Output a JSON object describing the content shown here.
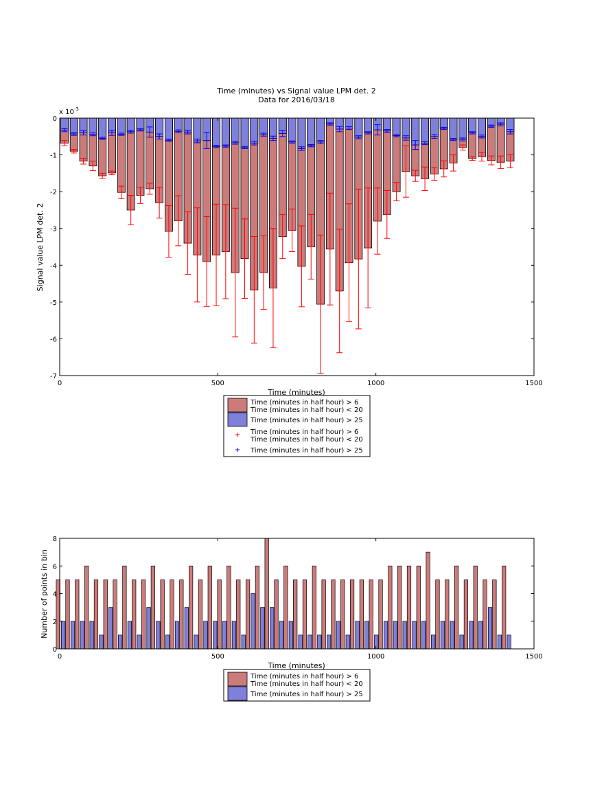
{
  "colors": {
    "red_bar": "#CC7B7B",
    "blue_bar": "#7F7FDC",
    "red_marker": "#FF0000",
    "blue_marker": "#0000FF"
  },
  "chart_data": [
    {
      "type": "bar",
      "title": "Time (minutes) vs Signal value LPM det. 2",
      "subtitle": "Data for 2016/03/18",
      "xlabel": "Time (minutes)",
      "ylabel": "Signal value LPM det. 2",
      "scale_label": "x 10",
      "scale_exponent": "-3",
      "xlim": [
        0,
        1500
      ],
      "ylim": [
        -7,
        0
      ],
      "xticks": [
        0,
        500,
        1000,
        1500
      ],
      "yticks": [
        -7,
        -6,
        -5,
        -4,
        -3,
        -2,
        -1,
        0
      ],
      "legend_position": "below",
      "legend": [
        {
          "kind": "bar",
          "color": "red",
          "line1": "Time (minutes in half hour) > 6",
          "line2": "Time (minutes in half hour) < 20"
        },
        {
          "kind": "bar",
          "color": "blue",
          "line1": "Time (minutes in half hour) > 25",
          "line2": ""
        },
        {
          "kind": "marker",
          "color": "red",
          "line1": "Time (minutes in half hour) > 6",
          "line2": "Time (minutes in half hour) < 20"
        },
        {
          "kind": "marker",
          "color": "blue",
          "line1": "Time (minutes in half hour) > 25",
          "line2": ""
        }
      ],
      "x": [
        15,
        45,
        75,
        105,
        135,
        165,
        195,
        225,
        255,
        285,
        315,
        345,
        375,
        405,
        435,
        465,
        495,
        525,
        555,
        585,
        615,
        645,
        675,
        705,
        735,
        765,
        795,
        825,
        855,
        885,
        915,
        945,
        975,
        1005,
        1035,
        1065,
        1095,
        1125,
        1155,
        1185,
        1215,
        1245,
        1275,
        1305,
        1335,
        1365,
        1395,
        1425
      ],
      "red_mean": [
        -0.68,
        -0.9,
        -1.17,
        -1.3,
        -1.57,
        -1.49,
        -2.02,
        -2.5,
        -2.1,
        -1.92,
        -2.3,
        -3.08,
        -2.79,
        -3.4,
        -3.72,
        -3.9,
        -3.72,
        -3.63,
        -4.2,
        -3.82,
        -4.67,
        -4.2,
        -4.62,
        -3.22,
        -3.05,
        -4.03,
        -3.5,
        -5.06,
        -3.56,
        -4.7,
        -3.93,
        -3.83,
        -3.53,
        -2.8,
        -2.62,
        -2.0,
        -1.45,
        -1.57,
        -1.65,
        -1.52,
        -1.38,
        -1.22,
        -0.8,
        -1.1,
        -1.05,
        -1.15,
        -1.2,
        -1.17
      ],
      "red_err": [
        0.07,
        0.05,
        0.08,
        0.13,
        0.07,
        0.05,
        0.17,
        0.4,
        0.22,
        0.15,
        0.42,
        0.7,
        0.68,
        0.85,
        1.28,
        1.22,
        1.38,
        1.28,
        1.75,
        1.08,
        1.45,
        1.0,
        1.62,
        0.6,
        0.58,
        1.1,
        0.88,
        1.88,
        1.52,
        1.68,
        1.6,
        1.9,
        1.63,
        0.9,
        0.65,
        0.25,
        0.7,
        0.15,
        0.32,
        0.17,
        0.22,
        0.22,
        0.07,
        0.05,
        0.12,
        0.12,
        0.17,
        0.18
      ],
      "blue_mean": [
        -0.33,
        -0.43,
        -0.4,
        -0.44,
        -0.55,
        -0.4,
        -0.44,
        -0.37,
        -0.32,
        -0.38,
        -0.5,
        -0.6,
        -0.36,
        -0.38,
        -0.62,
        -0.61,
        -0.77,
        -0.76,
        -0.67,
        -0.8,
        -0.68,
        -0.45,
        -0.55,
        -0.42,
        -0.65,
        -0.83,
        -0.75,
        -0.65,
        -0.16,
        -0.3,
        -0.27,
        -0.52,
        -0.4,
        -0.32,
        -0.35,
        -0.48,
        -0.54,
        -0.73,
        -0.68,
        -0.5,
        -0.28,
        -0.58,
        -0.58,
        -0.4,
        -0.5,
        -0.22,
        -0.17,
        -0.37
      ],
      "blue_err": [
        0.04,
        0.04,
        0.06,
        0.04,
        0.03,
        0.07,
        0.03,
        0.04,
        0.03,
        0.14,
        0.07,
        0.03,
        0.04,
        0.05,
        0.05,
        0.22,
        0.03,
        0.03,
        0.04,
        0.03,
        0.05,
        0.04,
        0.06,
        0.08,
        0.03,
        0.05,
        0.03,
        0.04,
        0.03,
        0.07,
        0.04,
        0.04,
        0.03,
        0.14,
        0.04,
        0.03,
        0.06,
        0.12,
        0.04,
        0.05,
        0.03,
        0.03,
        0.04,
        0.03,
        0.04,
        0.03,
        0.04,
        0.06
      ]
    },
    {
      "type": "bar",
      "xlabel": "Time (minutes)",
      "ylabel": "Number of points in bin",
      "xlim": [
        0,
        1500
      ],
      "ylim": [
        0,
        8
      ],
      "xticks": [
        0,
        500,
        1000,
        1500
      ],
      "yticks": [
        0,
        2,
        4,
        6,
        8
      ],
      "legend_position": "below",
      "legend": [
        {
          "kind": "bar",
          "color": "red",
          "line1": "Time (minutes in half hour) > 6",
          "line2": "Time (minutes in half hour) < 20"
        },
        {
          "kind": "bar",
          "color": "blue",
          "line1": "Time (minutes in half hour) > 25",
          "line2": ""
        }
      ],
      "x": [
        15,
        45,
        75,
        105,
        135,
        165,
        195,
        225,
        255,
        285,
        315,
        345,
        375,
        405,
        435,
        465,
        495,
        525,
        555,
        585,
        615,
        645,
        675,
        705,
        735,
        765,
        795,
        825,
        855,
        885,
        915,
        945,
        975,
        1005,
        1035,
        1065,
        1095,
        1125,
        1155,
        1185,
        1215,
        1245,
        1275,
        1305,
        1335,
        1365,
        1395,
        1425
      ],
      "red_count": [
        5,
        5,
        5,
        6,
        5,
        5,
        5,
        6,
        5,
        5,
        6,
        5,
        5,
        5,
        6,
        5,
        6,
        5,
        6,
        5,
        5,
        6,
        8,
        5,
        6,
        5,
        5,
        6,
        5,
        5,
        5,
        5,
        5,
        5,
        5,
        6,
        6,
        6,
        6,
        7,
        5,
        5,
        6,
        5,
        6,
        5,
        5,
        6
      ],
      "blue_count": [
        2,
        2,
        2,
        2,
        1,
        3,
        1,
        2,
        1,
        3,
        2,
        1,
        2,
        3,
        1,
        2,
        2,
        2,
        2,
        1,
        4,
        3,
        3,
        2,
        2,
        1,
        1,
        1,
        1,
        2,
        1,
        2,
        2,
        1,
        2,
        2,
        2,
        2,
        2,
        1,
        2,
        2,
        1,
        2,
        2,
        3,
        1,
        1
      ]
    }
  ]
}
